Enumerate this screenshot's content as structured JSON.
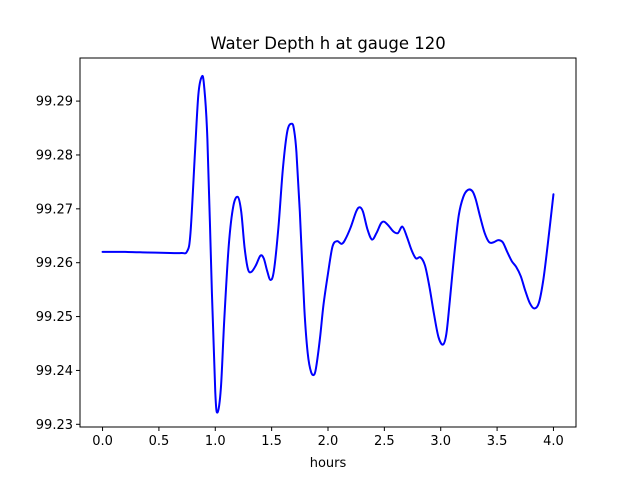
{
  "chart_data": {
    "type": "line",
    "title": "Water Depth h at gauge 120",
    "xlabel": "hours",
    "ylabel": "",
    "xlim": [
      -0.2,
      4.2
    ],
    "ylim": [
      99.2295,
      99.298
    ],
    "xticks": [
      0.0,
      0.5,
      1.0,
      1.5,
      2.0,
      2.5,
      3.0,
      3.5,
      4.0
    ],
    "xtick_labels": [
      "0.0",
      "0.5",
      "1.0",
      "1.5",
      "2.0",
      "2.5",
      "3.0",
      "3.5",
      "4.0"
    ],
    "yticks": [
      99.23,
      99.24,
      99.25,
      99.26,
      99.27,
      99.28,
      99.29
    ],
    "ytick_labels": [
      "99.23",
      "99.24",
      "99.25",
      "99.26",
      "99.27",
      "99.28",
      "99.29"
    ],
    "grid": false,
    "series": [
      {
        "color": "#0000ff",
        "x": [
          0.0,
          0.2,
          0.4,
          0.6,
          0.7,
          0.75,
          0.78,
          0.82,
          0.85,
          0.88,
          0.9,
          0.93,
          0.97,
          1.0,
          1.02,
          1.05,
          1.08,
          1.12,
          1.16,
          1.2,
          1.23,
          1.26,
          1.29,
          1.32,
          1.36,
          1.4,
          1.43,
          1.46,
          1.49,
          1.52,
          1.56,
          1.6,
          1.64,
          1.68,
          1.7,
          1.72,
          1.75,
          1.79,
          1.82,
          1.85,
          1.88,
          1.9,
          1.93,
          1.96,
          2.0,
          2.04,
          2.08,
          2.12,
          2.15,
          2.2,
          2.25,
          2.28,
          2.31,
          2.35,
          2.39,
          2.43,
          2.47,
          2.5,
          2.54,
          2.58,
          2.62,
          2.66,
          2.7,
          2.74,
          2.78,
          2.82,
          2.86,
          2.9,
          2.94,
          2.98,
          3.02,
          3.05,
          3.08,
          3.12,
          3.16,
          3.2,
          3.24,
          3.28,
          3.31,
          3.35,
          3.39,
          3.43,
          3.47,
          3.51,
          3.55,
          3.59,
          3.63,
          3.67,
          3.71,
          3.75,
          3.79,
          3.83,
          3.87,
          3.91,
          3.95,
          4.0
        ],
        "y": [
          99.262,
          99.262,
          99.2619,
          99.2618,
          99.2618,
          99.2621,
          99.2655,
          99.2805,
          99.2912,
          99.2945,
          99.293,
          99.283,
          99.2545,
          99.236,
          99.2322,
          99.2368,
          99.2495,
          99.2633,
          99.2705,
          99.2722,
          99.2695,
          99.2628,
          99.2588,
          99.2583,
          99.2595,
          99.2613,
          99.2608,
          99.2585,
          99.2568,
          99.2585,
          99.2665,
          99.2775,
          99.2845,
          99.2858,
          99.2845,
          99.2805,
          99.2695,
          99.2515,
          99.2432,
          99.2397,
          99.2393,
          99.2413,
          99.2462,
          99.2522,
          99.258,
          99.263,
          99.264,
          99.2635,
          99.2642,
          99.2665,
          99.2695,
          99.2703,
          99.2695,
          99.2662,
          99.2643,
          99.2655,
          99.2673,
          99.2676,
          99.2668,
          99.2658,
          99.2655,
          99.2667,
          99.2648,
          99.2624,
          99.2608,
          99.261,
          99.2595,
          99.2555,
          99.2505,
          99.2462,
          99.2448,
          99.2468,
          99.2528,
          99.2615,
          99.2688,
          99.2722,
          99.2735,
          99.2733,
          99.2718,
          99.2685,
          99.2655,
          99.2638,
          99.2638,
          99.2642,
          99.2638,
          99.262,
          99.2603,
          99.2592,
          99.2575,
          99.2548,
          99.2525,
          99.2515,
          99.2525,
          99.2568,
          99.2635,
          99.2727
        ]
      }
    ]
  }
}
